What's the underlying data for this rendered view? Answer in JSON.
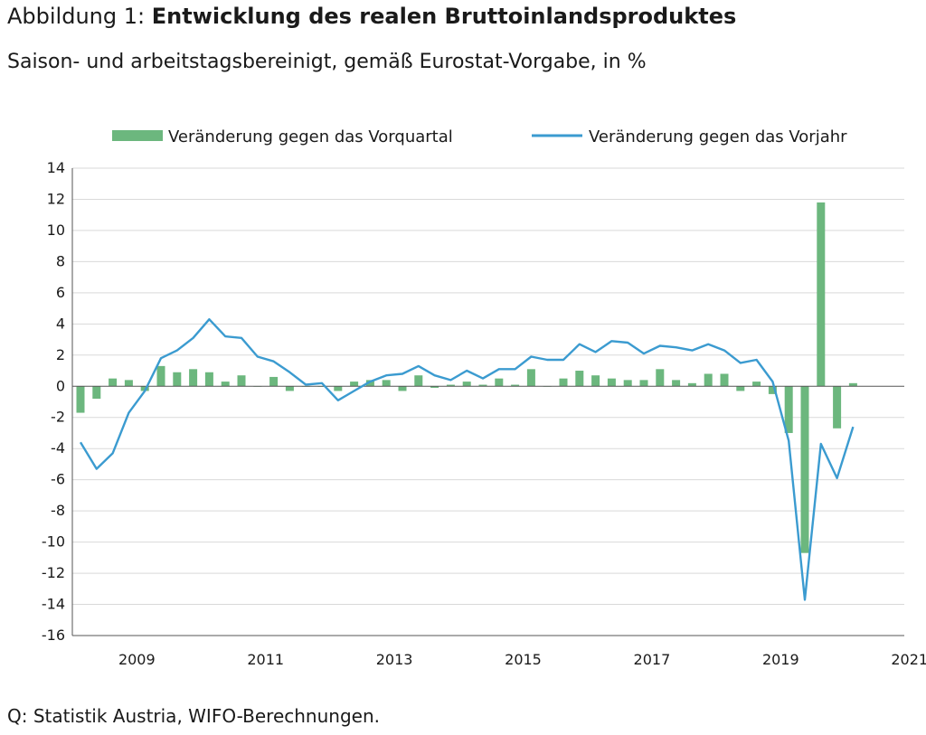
{
  "header": {
    "title_prefix": "Abbildung 1: ",
    "title_bold": "Entwicklung des realen Bruttoinlandsproduktes",
    "subtitle": "Saison- und arbeitstagsbereinigt, gemäß Eurostat-Vorgabe, in %"
  },
  "footer": {
    "source": "Q: Statistik Austria, WIFO-Berechnungen."
  },
  "colors": {
    "bars": "#6cb77e",
    "line": "#3b9bd0",
    "axis": "#555555",
    "grid": "#d9d9d9"
  },
  "chart_data": {
    "type": "bar+line",
    "title": "",
    "xlabel": "",
    "ylabel": "",
    "ylim": [
      -16,
      14
    ],
    "yticks": [
      14,
      12,
      10,
      8,
      6,
      4,
      2,
      0,
      -2,
      -4,
      -6,
      -8,
      -10,
      -12,
      -14,
      -16
    ],
    "ytick_labels": [
      "14",
      "12",
      "10",
      "8",
      "6",
      "4",
      "2",
      "0",
      "-2",
      "-4",
      "-6",
      "-8",
      "-10",
      "-12",
      "-14",
      "-16"
    ],
    "xtick_labels": [
      "2009",
      "2011",
      "2013",
      "2015",
      "2017",
      "2019",
      "2021"
    ],
    "xtick_years": [
      2009,
      2011,
      2013,
      2015,
      2017,
      2019,
      2021
    ],
    "grid": "horizontal",
    "legend_position": "top",
    "quarters_start": "2008 Q3",
    "series": [
      {
        "name": "Veränderung gegen das Vorquartal",
        "kind": "bar",
        "values": [
          -1.7,
          -0.8,
          0.5,
          0.4,
          -0.3,
          1.3,
          0.9,
          1.1,
          0.9,
          0.3,
          0.7,
          0.0,
          0.6,
          -0.3,
          0.0,
          0.0,
          -0.3,
          0.3,
          0.4,
          0.4,
          -0.3,
          0.7,
          -0.1,
          0.1,
          0.3,
          0.1,
          0.5,
          0.1,
          1.1,
          0.0,
          0.5,
          1.0,
          0.7,
          0.5,
          0.4,
          0.4,
          1.1,
          0.4,
          0.2,
          0.8,
          0.8,
          -0.3,
          0.3,
          -0.5,
          -3.0,
          -10.7,
          11.8,
          -2.7,
          0.2
        ]
      },
      {
        "name": "Veränderung gegen das Vorjahr",
        "kind": "line",
        "values": [
          -3.6,
          -5.3,
          -4.3,
          -1.7,
          -0.3,
          1.8,
          2.3,
          3.1,
          4.3,
          3.2,
          3.1,
          1.9,
          1.6,
          0.9,
          0.1,
          0.2,
          -0.9,
          -0.3,
          0.3,
          0.7,
          0.8,
          1.3,
          0.7,
          0.4,
          1.0,
          0.5,
          1.1,
          1.1,
          1.9,
          1.7,
          1.7,
          2.7,
          2.2,
          2.9,
          2.8,
          2.1,
          2.6,
          2.5,
          2.3,
          2.7,
          2.3,
          1.5,
          1.7,
          0.3,
          -3.5,
          -13.7,
          -3.7,
          -5.9,
          -2.6
        ]
      }
    ]
  }
}
